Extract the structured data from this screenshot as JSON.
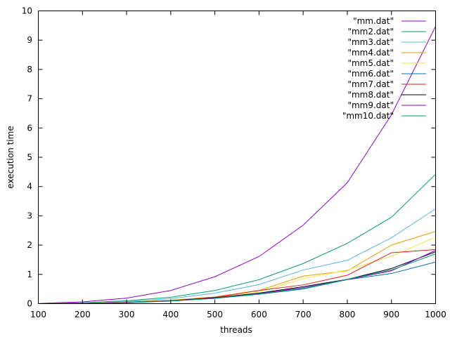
{
  "chart_data": {
    "type": "line",
    "xlabel": "threads",
    "ylabel": "execution time",
    "xlim": [
      100,
      1000
    ],
    "ylim": [
      0,
      10
    ],
    "xticks": [
      "100",
      "200",
      "300",
      "400",
      "500",
      "600",
      "700",
      "800",
      "900",
      "1000"
    ],
    "yticks": [
      "0",
      "1",
      "2",
      "3",
      "4",
      "5",
      "6",
      "7",
      "8",
      "9",
      "10"
    ],
    "grid": false,
    "legend_position": "top-right",
    "x": [
      100,
      200,
      300,
      400,
      500,
      600,
      700,
      800,
      900,
      1000
    ],
    "series": [
      {
        "name": "\"mm.dat\"",
        "color": "#9400d3",
        "values": [
          0.01,
          0.06,
          0.19,
          0.45,
          0.92,
          1.61,
          2.68,
          4.13,
          6.45,
          9.47
        ]
      },
      {
        "name": "\"mm2.dat\"",
        "color": "#009e73",
        "values": [
          0.01,
          0.03,
          0.1,
          0.22,
          0.45,
          0.82,
          1.37,
          2.06,
          2.95,
          4.42
        ]
      },
      {
        "name": "\"mm3.dat\"",
        "color": "#56b4e9",
        "values": [
          0.01,
          0.02,
          0.07,
          0.17,
          0.36,
          0.65,
          1.15,
          1.48,
          2.25,
          3.24
        ]
      },
      {
        "name": "\"mm4.dat\"",
        "color": "#e69f00",
        "values": [
          0.0,
          0.02,
          0.05,
          0.12,
          0.23,
          0.45,
          0.94,
          1.12,
          2.0,
          2.47
        ]
      },
      {
        "name": "\"mm5.dat\"",
        "color": "#f0e442",
        "values": [
          0.0,
          0.01,
          0.04,
          0.11,
          0.22,
          0.4,
          0.85,
          1.15,
          1.62,
          2.27
        ]
      },
      {
        "name": "\"mm6.dat\"",
        "color": "#0072b2",
        "values": [
          0.0,
          0.01,
          0.04,
          0.1,
          0.18,
          0.32,
          0.5,
          0.82,
          1.03,
          1.42
        ]
      },
      {
        "name": "\"mm7.dat\"",
        "color": "#e51e10",
        "values": [
          0.0,
          0.01,
          0.04,
          0.1,
          0.22,
          0.45,
          0.64,
          0.97,
          1.74,
          1.85
        ]
      },
      {
        "name": "\"mm8.dat\"",
        "color": "#000000",
        "values": [
          0.0,
          0.01,
          0.04,
          0.1,
          0.2,
          0.36,
          0.58,
          0.83,
          1.2,
          1.77
        ]
      },
      {
        "name": "\"mm9.dat\"",
        "color": "#9400d3",
        "values": [
          0.0,
          0.01,
          0.04,
          0.09,
          0.19,
          0.34,
          0.55,
          0.82,
          1.12,
          1.82
        ]
      },
      {
        "name": "\"mm10.dat\"",
        "color": "#009e73",
        "values": [
          0.0,
          0.01,
          0.03,
          0.09,
          0.18,
          0.33,
          0.52,
          0.83,
          1.15,
          1.7
        ]
      }
    ]
  }
}
